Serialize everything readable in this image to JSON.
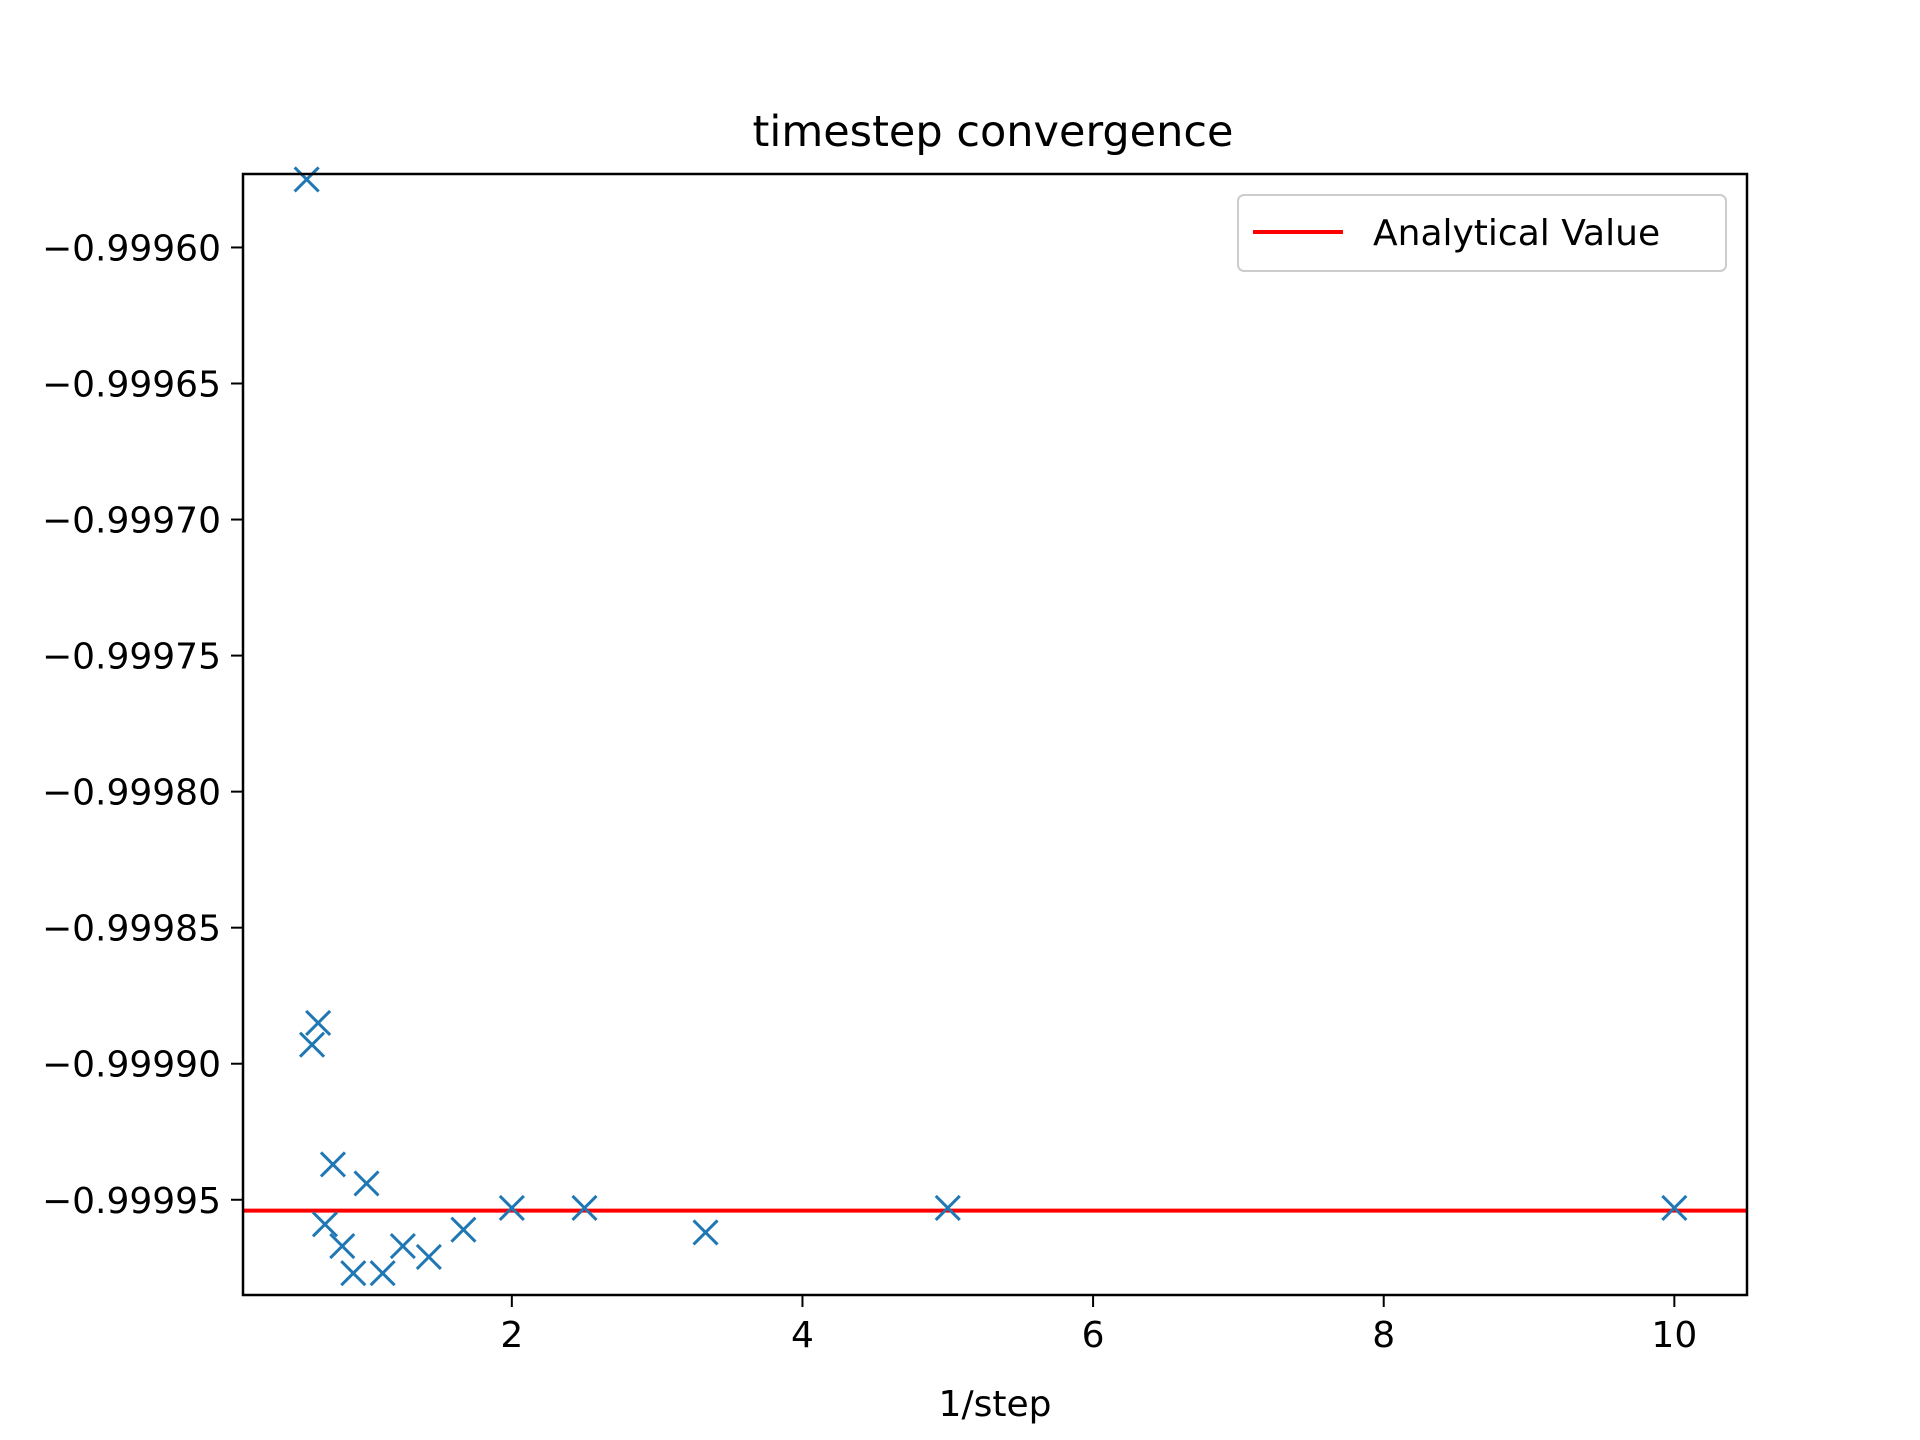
{
  "chart_data": {
    "type": "scatter",
    "title": "timestep convergence",
    "xlabel": "1/step",
    "ylabel": "",
    "xlim": [
      0.15,
      10.5
    ],
    "ylim": [
      -0.999985,
      -0.999573
    ],
    "xticks": [
      2,
      4,
      6,
      8,
      10
    ],
    "xtick_labels": [
      "2",
      "4",
      "6",
      "8",
      "10"
    ],
    "yticks": [
      -0.9996,
      -0.99965,
      -0.9997,
      -0.99975,
      -0.9998,
      -0.99985,
      -0.9999,
      -0.99995
    ],
    "ytick_labels": [
      "−0.99960",
      "−0.99965",
      "−0.99970",
      "−0.99975",
      "−0.99980",
      "−0.99985",
      "−0.99990",
      "−0.99995"
    ],
    "grid": false,
    "legend_position": "top-right",
    "series": [
      {
        "marker": "x",
        "color": "#1f77b4",
        "x": [
          0.625,
          0.667,
          0.714,
          0.769,
          0.833,
          0.909,
          1.0,
          1.111,
          1.25,
          1.429,
          1.667,
          2.0,
          2.5,
          3.333,
          5.0,
          10.0,
          0.588
        ],
        "y": [
          -0.999893,
          -0.999885,
          -0.999959,
          -0.999937,
          -0.999967,
          -0.999977,
          -0.999944,
          -0.999977,
          -0.999967,
          -0.999971,
          -0.999961,
          -0.999953,
          -0.999953,
          -0.999962,
          -0.999953,
          -0.999953,
          -0.999575
        ]
      }
    ],
    "reference_line": {
      "name": "Analytical Value",
      "y": -0.999954,
      "color": "#ff0000"
    }
  }
}
